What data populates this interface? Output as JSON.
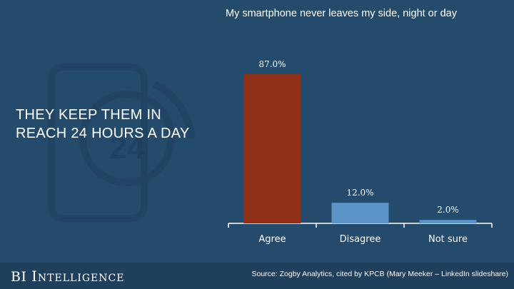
{
  "headline": "THEY KEEP THEM IN REACH 24 HOURS A DAY",
  "background_graphic": {
    "icon": "smartphone-24-hours-icon",
    "text": "24"
  },
  "brand": {
    "prefix": "BI",
    "name": "Intelligence"
  },
  "source": "Source: Zogby Analytics, cited by KPCB (Mary Meeker – LinkedIn slideshare)",
  "colors": {
    "background": "#244a6c",
    "footer": "#1f3f5d",
    "highlight_bar": "#8f2f17",
    "bar": "#5b93c6",
    "text": "#ffffff"
  },
  "chart_data": {
    "type": "bar",
    "title": "My smartphone never leaves my side, night or day",
    "categories": [
      "Agree",
      "Disagree",
      "Not sure"
    ],
    "values": [
      87.0,
      12.0,
      2.0
    ],
    "value_labels": [
      "87.0%",
      "12.0%",
      "2.0%"
    ],
    "bar_colors": [
      "#8f2f17",
      "#5b93c6",
      "#5b93c6"
    ],
    "ylim": [
      0,
      100
    ],
    "grid": false,
    "legend": "none"
  }
}
